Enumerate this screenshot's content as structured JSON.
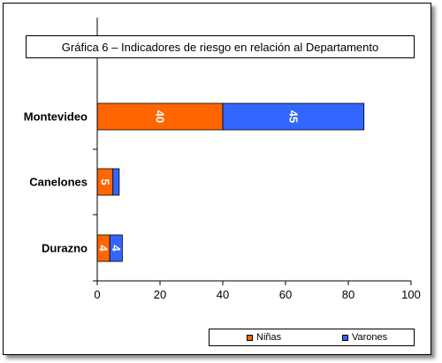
{
  "chart_data": {
    "type": "bar",
    "orientation": "horizontal",
    "stacked": true,
    "title": "Gráfica 6 – Indicadores de riesgo en relación al Departamento",
    "categories": [
      "Montevideo",
      "Canelones",
      "Durazno"
    ],
    "series": [
      {
        "name": "Niñas",
        "color": "#ff6600",
        "values": [
          40,
          5,
          4
        ],
        "labels": [
          "40",
          "5",
          "4"
        ]
      },
      {
        "name": "Varones",
        "color": "#3366ff",
        "values": [
          45,
          2,
          4
        ],
        "labels": [
          "45",
          "",
          "4"
        ]
      }
    ],
    "xlim": [
      0,
      100
    ],
    "xticks": [
      0,
      20,
      40,
      60,
      80,
      100
    ],
    "xtick_labels": [
      "0",
      "20",
      "40",
      "60",
      "80",
      "100"
    ],
    "grid": false,
    "legend_position": "bottom-right"
  }
}
